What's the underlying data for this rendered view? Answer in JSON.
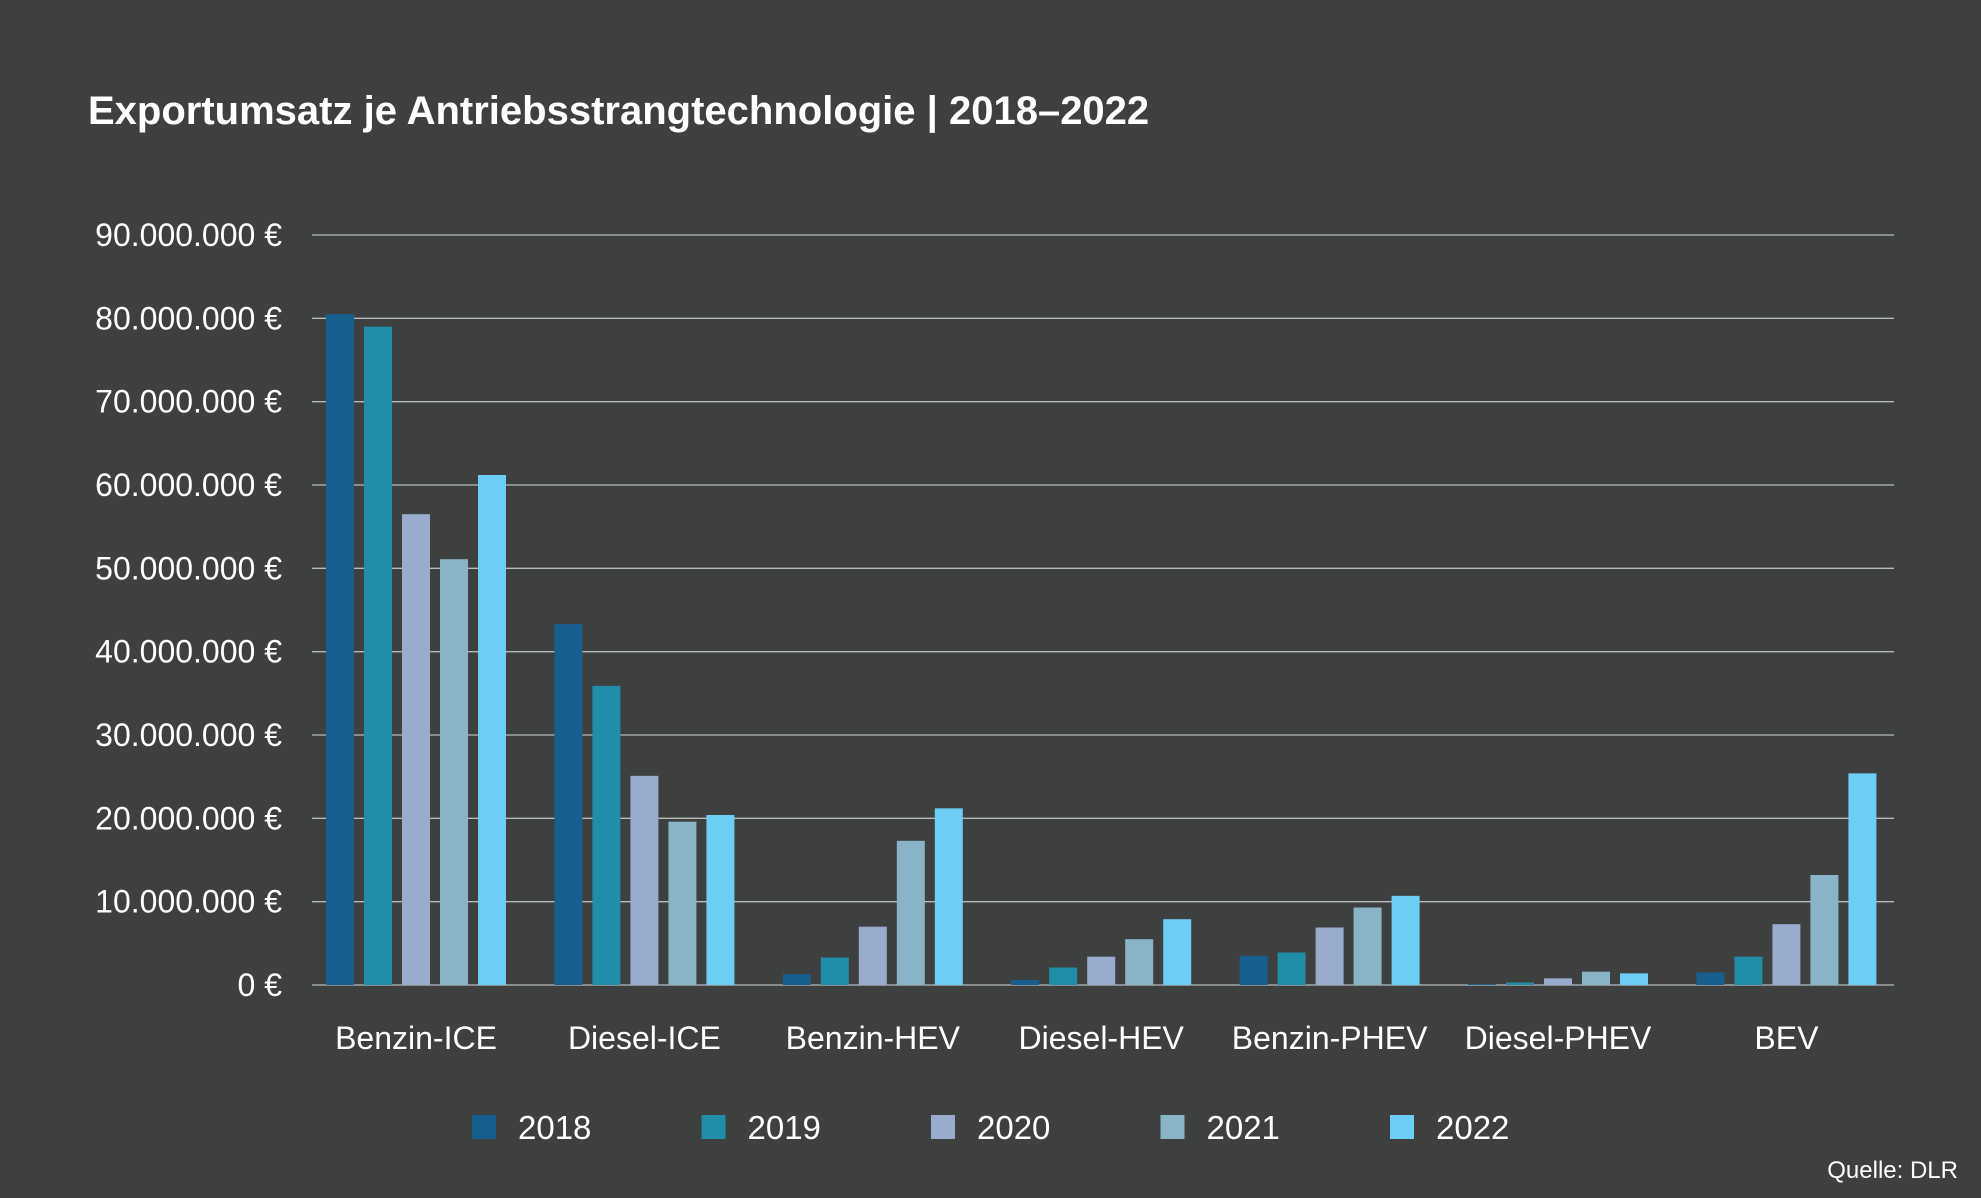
{
  "chart_data": {
    "type": "bar",
    "title": "Exportumsatz je Antriebsstrangtechnologie | 2018–2022",
    "xlabel": "",
    "ylabel": "",
    "ylim": [
      0,
      90000000
    ],
    "grid": true,
    "y_ticks": [
      {
        "value": 0,
        "label": "0 €"
      },
      {
        "value": 10000000,
        "label": "10.000.000 €"
      },
      {
        "value": 20000000,
        "label": "20.000.000 €"
      },
      {
        "value": 30000000,
        "label": "30.000.000 €"
      },
      {
        "value": 40000000,
        "label": "40.000.000 €"
      },
      {
        "value": 50000000,
        "label": "50.000.000 €"
      },
      {
        "value": 60000000,
        "label": "60.000.000 €"
      },
      {
        "value": 70000000,
        "label": "70.000.000 €"
      },
      {
        "value": 80000000,
        "label": "80.000.000 €"
      },
      {
        "value": 90000000,
        "label": "90.000.000 €"
      }
    ],
    "categories": [
      "Benzin-ICE",
      "Diesel-ICE",
      "Benzin-HEV",
      "Diesel-HEV",
      "Benzin-PHEV",
      "Diesel-PHEV",
      "BEV"
    ],
    "legend_position": "bottom",
    "series": [
      {
        "name": "2018",
        "color": "#175f8e",
        "values": [
          80500000,
          43300000,
          1300000,
          600000,
          3500000,
          100000,
          1500000
        ]
      },
      {
        "name": "2019",
        "color": "#208ea8",
        "values": [
          79000000,
          35900000,
          3300000,
          2100000,
          3900000,
          300000,
          3400000
        ]
      },
      {
        "name": "2020",
        "color": "#99acce",
        "values": [
          56500000,
          25100000,
          7000000,
          3400000,
          6900000,
          800000,
          7300000
        ]
      },
      {
        "name": "2021",
        "color": "#89b4c8",
        "values": [
          51100000,
          19600000,
          17300000,
          5500000,
          9300000,
          1600000,
          13200000
        ]
      },
      {
        "name": "2022",
        "color": "#6ccdf5",
        "values": [
          61200000,
          20400000,
          21200000,
          7900000,
          10700000,
          1400000,
          25400000
        ]
      }
    ]
  },
  "source": "Quelle: DLR"
}
